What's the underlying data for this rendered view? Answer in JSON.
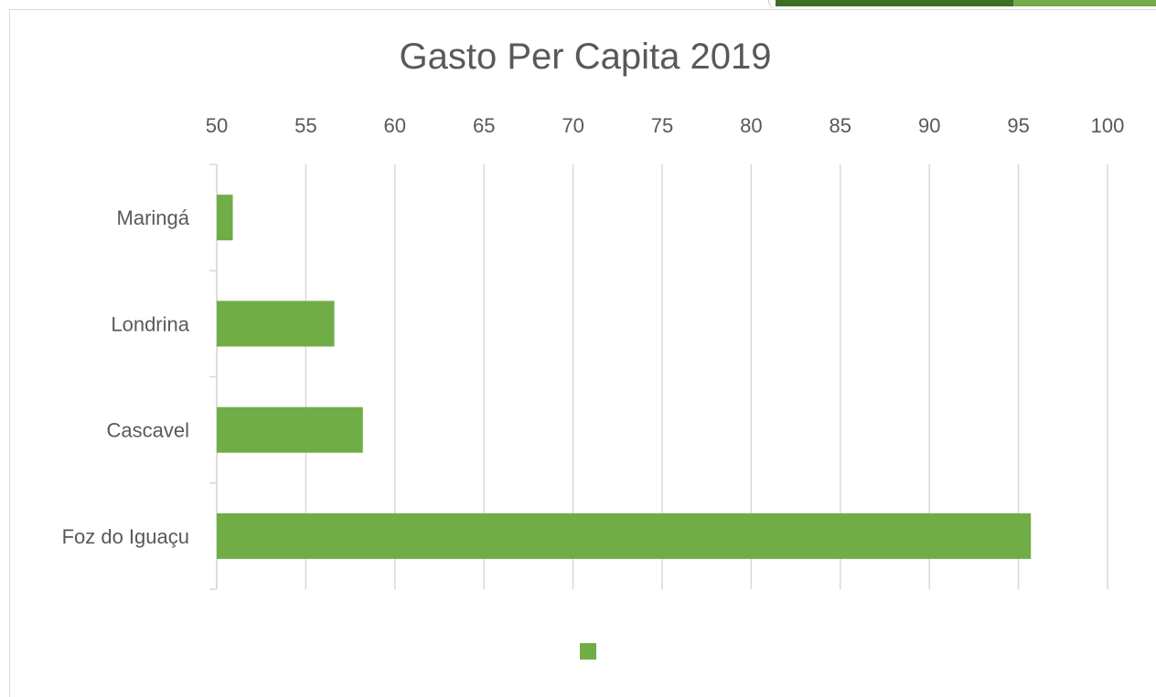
{
  "chart_data": {
    "type": "bar",
    "orientation": "horizontal",
    "title": "Gasto Per Capita 2019",
    "categories": [
      "Maringá",
      "Londrina",
      "Cascavel",
      "Foz do Iguaçu"
    ],
    "series": [
      {
        "values": [
          50.9,
          56.6,
          58.2,
          95.7
        ],
        "color": "#70ad47"
      }
    ],
    "xlim": [
      50,
      100
    ],
    "x_ticks": [
      50,
      55,
      60,
      65,
      70,
      75,
      80,
      85,
      90,
      95,
      100
    ],
    "x_tick_labels": [
      "50",
      "55",
      "60",
      "65",
      "70",
      "75",
      "80",
      "85",
      "90",
      "95",
      "100"
    ],
    "x_axis_position": "top",
    "grid": "vertical",
    "legend": "bottom",
    "xlabel": "",
    "ylabel": ""
  },
  "colors": {
    "bar": "#70ad47",
    "grid": "#d9d9d9",
    "text": "#595959",
    "ribbon_dark": "#3f6e25",
    "ribbon_light": "#70ad47"
  }
}
